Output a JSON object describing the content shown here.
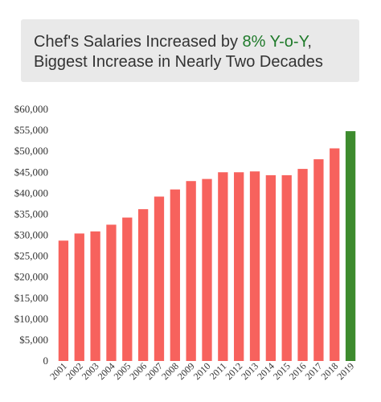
{
  "title": {
    "line1_prefix": "Chef's Salaries Increased by ",
    "line1_highlight": "8% Y-o-Y",
    "line1_suffix": ",",
    "line2": "Biggest Increase in Nearly Two Decades"
  },
  "colors": {
    "bar": "#f7625d",
    "highlight_bar": "#3d8b2e",
    "title_accent": "#1f7a2a",
    "title_bg": "#e9e9e9"
  },
  "chart_data": {
    "type": "bar",
    "categories": [
      "2001",
      "2002",
      "2003",
      "2004",
      "2005",
      "2006",
      "2007",
      "2008",
      "2009",
      "2010",
      "2011",
      "2012",
      "2013",
      "2014",
      "2015",
      "2016",
      "2017",
      "2018",
      "2019"
    ],
    "values": [
      28700,
      30400,
      30900,
      32500,
      34200,
      36200,
      39200,
      40900,
      42900,
      43400,
      45000,
      45000,
      45200,
      44300,
      44300,
      45800,
      48100,
      50700,
      54800
    ],
    "highlight_category": "2019",
    "ylim": [
      0,
      60000
    ],
    "yticks": [
      0,
      5000,
      10000,
      15000,
      20000,
      25000,
      30000,
      35000,
      40000,
      45000,
      50000,
      55000,
      60000
    ],
    "ytick_labels": [
      "0",
      "$5,000",
      "$10,000",
      "$15,000",
      "$20,000",
      "$25,000",
      "$30,000",
      "$35,000",
      "$40,000",
      "$45,000",
      "$50,000",
      "$55,000",
      "$60,000"
    ],
    "grid": false,
    "legend": false
  }
}
